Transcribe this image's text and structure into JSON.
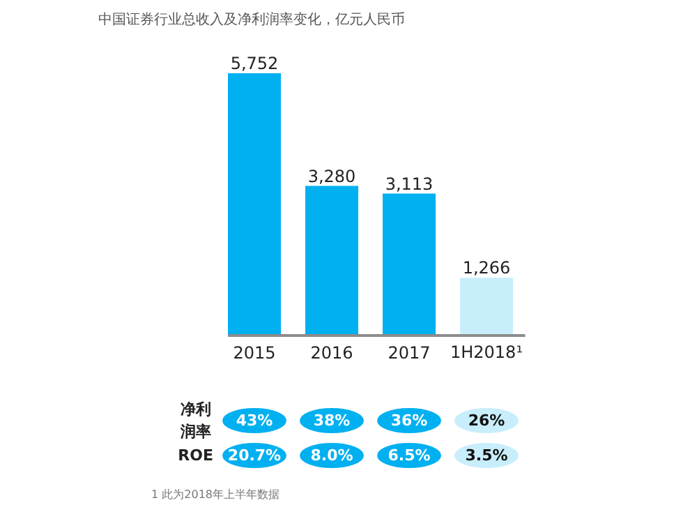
{
  "chart_data": {
    "type": "bar",
    "title": "中国证券行业总收入及净利润率变化，亿元人民币",
    "categories": [
      "2015",
      "2016",
      "2017",
      "1H2018¹"
    ],
    "values": [
      5752,
      3280,
      3113,
      1266
    ],
    "colors": [
      "#00b0f0",
      "#00b0f0",
      "#00b0f0",
      "#c8eefc"
    ],
    "value_labels": [
      "5,752",
      "3,280",
      "3,113",
      "1,266"
    ],
    "annotations": [
      "净利润率",
      "43%",
      "38%",
      "36%",
      "26%",
      "ROE",
      "20.7%",
      "8.0%",
      "6.5%",
      "3.5%",
      "1 此为2018年上半年数据"
    ]
  }
}
